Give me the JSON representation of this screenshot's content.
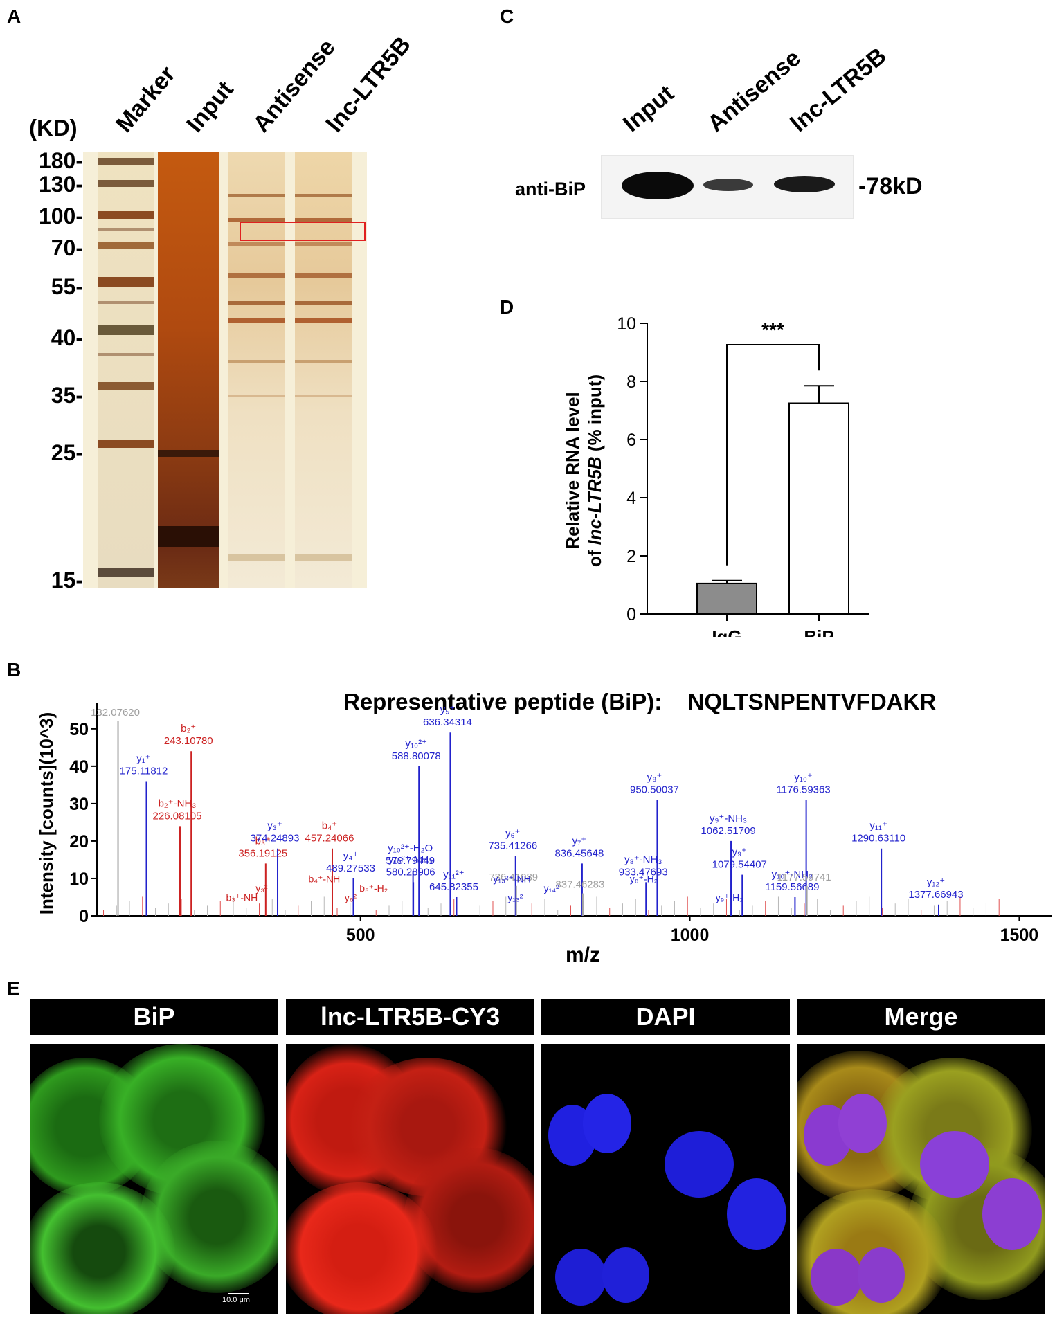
{
  "panels": {
    "A": "A",
    "B": "B",
    "C": "C",
    "D": "D",
    "E": "E"
  },
  "panel_a": {
    "unit_label": "(KD)",
    "lanes": [
      "Marker",
      "Input",
      "Antisense",
      "lnc-LTR5B"
    ],
    "markers": [
      "180-",
      "130-",
      "100-",
      "70-",
      "55-",
      "40-",
      "35-",
      "25-",
      "15-"
    ]
  },
  "panel_c": {
    "lanes": [
      "Input",
      "Antisense",
      "lnc-LTR5B"
    ],
    "row_label": "anti-BiP",
    "size_label": "-78kD",
    "band_intensities": [
      1.0,
      0.45,
      0.7
    ]
  },
  "panel_b": {
    "title": "Representative peptide (BiP):",
    "sequence": "NQLTSNPENTVFDAKR",
    "chart_data": {
      "type": "bar",
      "xlabel": "m/z",
      "ylabel": "Intensity [counts](10^3)",
      "xlim": [
        100,
        1550
      ],
      "ylim": [
        0,
        57
      ],
      "xticks": [
        500,
        1000,
        1500
      ],
      "yticks": [
        0,
        10,
        20,
        30,
        40,
        50
      ],
      "peaks": [
        {
          "x": 132.0762,
          "y": 52,
          "label": "132.07620",
          "color": "#a0a0a0"
        },
        {
          "x": 175.11812,
          "y": 36,
          "label": "y₁⁺ 175.11812",
          "color": "#2222cc"
        },
        {
          "x": 226.08105,
          "y": 24,
          "label": "b₂⁺-NH₃ 226.08105",
          "color": "#cc2222"
        },
        {
          "x": 243.1078,
          "y": 44,
          "label": "b₂⁺ 243.10780",
          "color": "#cc2222"
        },
        {
          "x": 356.19125,
          "y": 14,
          "label": "b₃⁺ 356.19125",
          "color": "#cc2222"
        },
        {
          "x": 374.24893,
          "y": 18,
          "label": "y₃⁺ 374.24893",
          "color": "#2222cc"
        },
        {
          "x": 457.24066,
          "y": 18,
          "label": "b₄⁺ 457.24066",
          "color": "#cc2222"
        },
        {
          "x": 489.27533,
          "y": 10,
          "label": "y₄⁺ 489.27533",
          "color": "#2222cc"
        },
        {
          "x": 579.79449,
          "y": 12,
          "label": "y₁₀²⁺-H₂O 579.79449",
          "color": "#2222cc"
        },
        {
          "x": 580.28906,
          "y": 9,
          "label": "y₁₀²⁺-NH₃ 580.28906",
          "color": "#2222cc"
        },
        {
          "x": 588.80078,
          "y": 40,
          "label": "y₁₀²⁺ 588.80078",
          "color": "#2222cc"
        },
        {
          "x": 636.34314,
          "y": 49,
          "label": "y₅⁺ 636.34314",
          "color": "#2222cc"
        },
        {
          "x": 645.82355,
          "y": 5,
          "label": "y₁₁²⁺ 645.82355",
          "color": "#2222cc"
        },
        {
          "x": 735.41266,
          "y": 16,
          "label": "y₆⁺ 735.41266",
          "color": "#2222cc"
        },
        {
          "x": 736.41089,
          "y": 8,
          "label": "736.41089",
          "color": "#a0a0a0"
        },
        {
          "x": 836.45648,
          "y": 14,
          "label": "y₇⁺ 836.45648",
          "color": "#2222cc"
        },
        {
          "x": 837.46283,
          "y": 6,
          "label": "837.46283",
          "color": "#a0a0a0"
        },
        {
          "x": 933.47693,
          "y": 9,
          "label": "y₈⁺-NH₃ 933.47693",
          "color": "#2222cc"
        },
        {
          "x": 950.50037,
          "y": 31,
          "label": "y₈⁺ 950.50037",
          "color": "#2222cc"
        },
        {
          "x": 1062.51709,
          "y": 20,
          "label": "y₉⁺-NH₃ 1062.51709",
          "color": "#2222cc"
        },
        {
          "x": 1079.54407,
          "y": 11,
          "label": "y₉⁺ 1079.54407",
          "color": "#2222cc"
        },
        {
          "x": 1159.56689,
          "y": 5,
          "label": "y₁₀⁺-NH₃ 1159.56689",
          "color": "#2222cc"
        },
        {
          "x": 1176.59363,
          "y": 31,
          "label": "y₁₀⁺ 1176.59363",
          "color": "#2222cc"
        },
        {
          "x": 1177.59741,
          "y": 8,
          "label": "1177.59741",
          "color": "#a0a0a0"
        },
        {
          "x": 1290.6311,
          "y": 18,
          "label": "y₁₁⁺ 1290.63110",
          "color": "#2222cc"
        },
        {
          "x": 1377.66943,
          "y": 3,
          "label": "y₁₂⁺ 1377.66943",
          "color": "#2222cc"
        }
      ],
      "minor_labels": [
        "b₃⁺-NH",
        "y₃²",
        "b₄⁺-NH",
        "y₆²",
        "b₅⁺-H₂",
        "y₁₃²⁺-NH",
        "y₁₃²",
        "y₁₄²",
        "y₈⁺-H₂",
        "y₉⁺-H₂"
      ]
    }
  },
  "panel_d": {
    "chart_data": {
      "type": "bar",
      "categories": [
        "IgG",
        "BiP"
      ],
      "values": [
        1.05,
        7.25
      ],
      "errors": [
        0.1,
        0.6
      ],
      "ylim": [
        0,
        10
      ],
      "yticks": [
        0,
        2,
        4,
        6,
        8,
        10
      ],
      "ylabel_line1": "Relative RNA level",
      "ylabel_line2_pre": "of ",
      "ylabel_line2_italic": "lnc-LTR5B",
      "ylabel_line2_post": " (% input)",
      "significance": "***",
      "colors": [
        "#8c8c8c",
        "#ffffff"
      ]
    }
  },
  "panel_e": {
    "headers": [
      "BiP",
      "lnc-LTR5B-CY3",
      "DAPI",
      "Merge"
    ],
    "scale_bar": "10.0 μm"
  }
}
